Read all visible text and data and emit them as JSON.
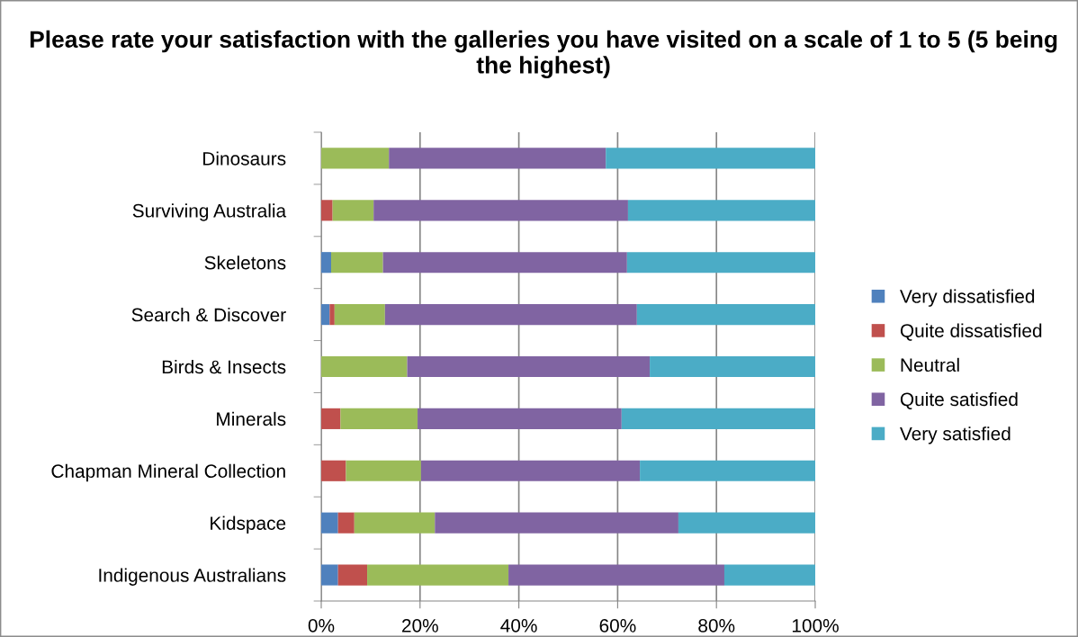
{
  "chart_data": {
    "type": "bar",
    "orientation": "horizontal",
    "stacked": true,
    "title": "Please rate your satisfaction with the galleries you have visited on a scale of 1 to 5 (5 being the highest)",
    "categories": [
      "Dinosaurs",
      "Surviving Australia",
      "Skeletons",
      "Search & Discover",
      "Birds & Insects",
      "Minerals",
      "Chapman Mineral Collection",
      "Kidspace",
      "Indigenous Australians"
    ],
    "series": [
      {
        "name": "Very dissatisfied",
        "color": "#4f81bd",
        "values": [
          0,
          0,
          2.0,
          1.7,
          0,
          0,
          0,
          3.4,
          3.4
        ]
      },
      {
        "name": "Quite dissatisfied",
        "color": "#c0504d",
        "values": [
          0,
          2.3,
          0,
          1.0,
          0,
          3.9,
          5.0,
          3.3,
          5.9
        ]
      },
      {
        "name": "Neutral",
        "color": "#9bbb59",
        "values": [
          13.7,
          8.3,
          10.5,
          10.2,
          17.4,
          15.6,
          15.2,
          16.3,
          28.6
        ]
      },
      {
        "name": "Quite satisfied",
        "color": "#8064a2",
        "values": [
          43.9,
          51.5,
          49.4,
          51.0,
          49.1,
          41.3,
          44.3,
          49.3,
          43.7
        ]
      },
      {
        "name": "Very satisfied",
        "color": "#4bacc6",
        "values": [
          42.4,
          37.9,
          38.1,
          36.1,
          33.5,
          39.2,
          35.5,
          27.7,
          18.4
        ]
      }
    ],
    "xlim": [
      0,
      100
    ],
    "xticks": [
      {
        "value": 0,
        "label": "0%"
      },
      {
        "value": 20,
        "label": "20%"
      },
      {
        "value": 40,
        "label": "40%"
      },
      {
        "value": 60,
        "label": "60%"
      },
      {
        "value": 80,
        "label": "80%"
      },
      {
        "value": 100,
        "label": "100%"
      }
    ],
    "grid": "x",
    "legend": "right"
  }
}
